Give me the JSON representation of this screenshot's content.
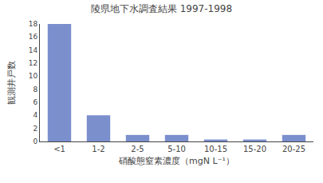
{
  "chart_data": {
    "type": "bar",
    "title": "陵県地下水調査結果 1997-1998",
    "xlabel": "硝酸態窒素濃度（mgN L⁻¹）",
    "ylabel": "観測井戸数",
    "categories": [
      "<1",
      "1-2",
      "2-5",
      "5-10",
      "10-15",
      "15-20",
      "20-25"
    ],
    "values": [
      18,
      4,
      1,
      1,
      0.3,
      0.3,
      1
    ],
    "color": "#7b8fcd",
    "ylim": [
      0,
      18
    ],
    "yticks": [
      0,
      2,
      4,
      6,
      8,
      10,
      12,
      14,
      16,
      18
    ],
    "grid": false
  }
}
